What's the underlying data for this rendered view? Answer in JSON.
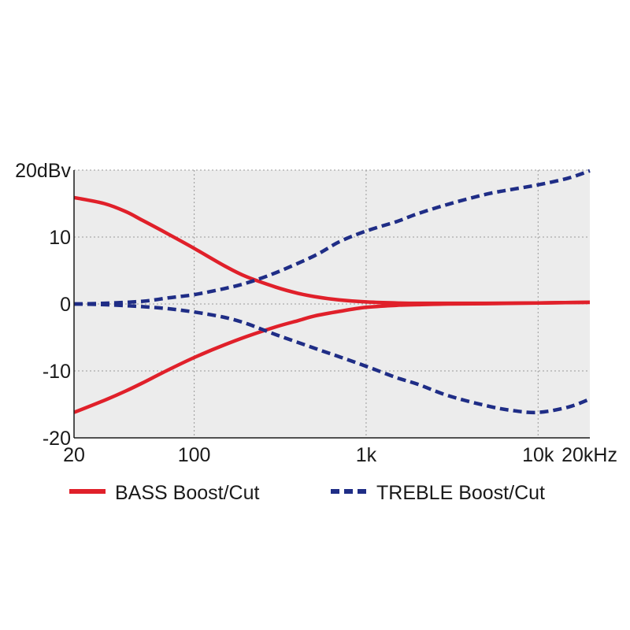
{
  "chart_data": {
    "type": "line",
    "title": "",
    "xlabel": "",
    "ylabel": "",
    "x_scale": "log",
    "xlim": [
      20,
      20000
    ],
    "ylim": [
      -20,
      20
    ],
    "grid": true,
    "legend_position": "bottom",
    "x_ticks": [
      {
        "value": 20,
        "label": "20"
      },
      {
        "value": 100,
        "label": "100"
      },
      {
        "value": 1000,
        "label": "1k"
      },
      {
        "value": 10000,
        "label": "10k"
      },
      {
        "value": 20000,
        "label": "20kHz"
      }
    ],
    "y_ticks": [
      {
        "value": 20,
        "label": "20dBv"
      },
      {
        "value": 10,
        "label": "10"
      },
      {
        "value": 0,
        "label": "0"
      },
      {
        "value": -10,
        "label": "-10"
      },
      {
        "value": -20,
        "label": "-20"
      }
    ],
    "series": [
      {
        "name": "BASS Boost/Cut",
        "group": "bass",
        "part": "boost",
        "color": "#e0202a",
        "dash": "solid",
        "x": [
          20,
          30,
          40,
          50,
          70,
          100,
          150,
          200,
          300,
          400,
          500,
          700,
          1000,
          1500,
          2000,
          3000,
          5000,
          10000,
          20000
        ],
        "y": [
          15.9,
          15.0,
          13.8,
          12.5,
          10.5,
          8.3,
          5.7,
          4.1,
          2.5,
          1.6,
          1.1,
          0.6,
          0.3,
          0.15,
          0.1,
          0.1,
          0.1,
          0.15,
          0.25
        ]
      },
      {
        "name": "",
        "group": "bass",
        "part": "cut",
        "color": "#e0202a",
        "dash": "solid",
        "x": [
          20,
          30,
          40,
          50,
          70,
          100,
          150,
          200,
          300,
          400,
          500,
          700,
          1000,
          1500,
          2000,
          3000,
          5000,
          10000,
          20000
        ],
        "y": [
          -16.2,
          -14.4,
          -13.0,
          -11.8,
          -9.9,
          -8.0,
          -6.1,
          -4.9,
          -3.4,
          -2.5,
          -1.8,
          -1.1,
          -0.5,
          -0.2,
          -0.1,
          0.0,
          0.05,
          0.15,
          0.25
        ]
      },
      {
        "name": "TREBLE Boost/Cut",
        "group": "treble",
        "part": "boost",
        "color": "#1f2d86",
        "dash": "dashed",
        "x": [
          20,
          30,
          50,
          70,
          100,
          150,
          200,
          300,
          500,
          700,
          1000,
          1500,
          2000,
          3000,
          5000,
          7000,
          10000,
          15000,
          20000
        ],
        "y": [
          0.0,
          0.1,
          0.4,
          0.9,
          1.4,
          2.3,
          3.1,
          4.7,
          7.2,
          9.3,
          10.9,
          12.3,
          13.5,
          14.9,
          16.4,
          17.1,
          17.8,
          18.8,
          19.9
        ]
      },
      {
        "name": "",
        "group": "treble",
        "part": "cut",
        "color": "#1f2d86",
        "dash": "dashed",
        "x": [
          20,
          30,
          50,
          70,
          100,
          150,
          200,
          300,
          500,
          700,
          1000,
          1500,
          2000,
          3000,
          5000,
          7000,
          10000,
          15000,
          20000
        ],
        "y": [
          0.0,
          -0.1,
          -0.4,
          -0.7,
          -1.2,
          -2.0,
          -2.9,
          -4.6,
          -6.6,
          -7.9,
          -9.3,
          -11.0,
          -12.0,
          -13.7,
          -15.2,
          -15.9,
          -16.2,
          -15.4,
          -14.2
        ]
      }
    ]
  }
}
